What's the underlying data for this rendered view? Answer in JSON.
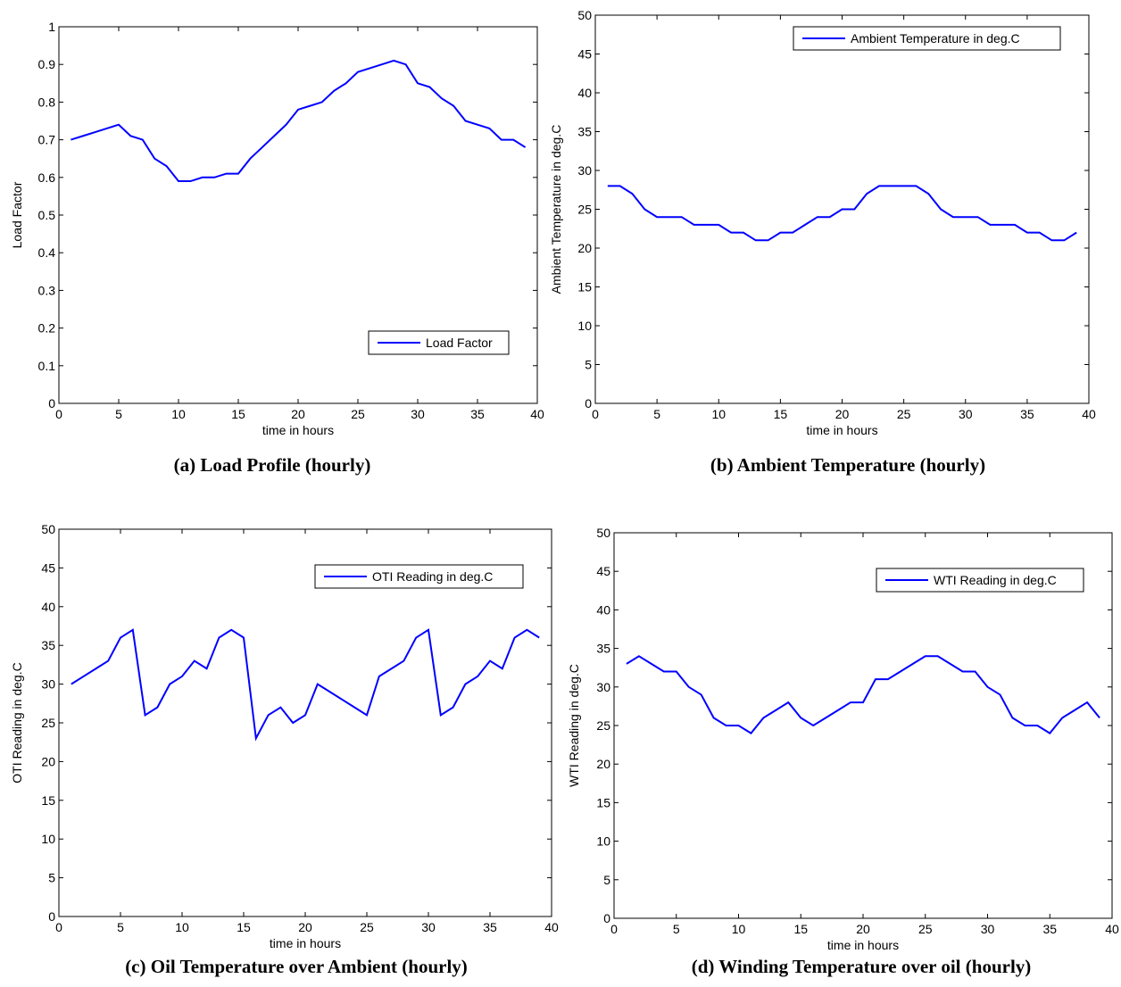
{
  "chart_data": [
    {
      "type": "line",
      "title": "(a) Load Profile (hourly)",
      "xlabel": "time in hours",
      "ylabel": "Load Factor",
      "x": [
        1,
        2,
        3,
        4,
        5,
        6,
        7,
        8,
        9,
        10,
        11,
        12,
        13,
        14,
        15,
        16,
        17,
        18,
        19,
        20,
        21,
        22,
        23,
        24,
        25,
        26,
        27,
        28,
        29,
        30,
        31,
        32,
        33,
        34,
        35,
        36,
        37,
        38,
        39
      ],
      "series": [
        {
          "name": "Load Factor",
          "color": "#0000ff",
          "values": [
            0.7,
            0.71,
            0.72,
            0.73,
            0.74,
            0.71,
            0.7,
            0.65,
            0.63,
            0.59,
            0.59,
            0.6,
            0.6,
            0.61,
            0.61,
            0.65,
            0.68,
            0.71,
            0.74,
            0.78,
            0.79,
            0.8,
            0.83,
            0.85,
            0.88,
            0.89,
            0.9,
            0.91,
            0.9,
            0.85,
            0.84,
            0.81,
            0.79,
            0.75,
            0.74,
            0.73,
            0.7,
            0.7,
            0.68
          ]
        }
      ],
      "xlim": [
        0,
        40
      ],
      "xticks": [
        0,
        5,
        10,
        15,
        20,
        25,
        30,
        35,
        40
      ],
      "ylim": [
        0,
        1
      ],
      "yticks": [
        0,
        0.1,
        0.2,
        0.3,
        0.4,
        0.5,
        0.6,
        0.7,
        0.8,
        0.9,
        1
      ],
      "legend": "lower right"
    },
    {
      "type": "line",
      "title": "(b) Ambient Temperature (hourly)",
      "xlabel": "time in hours",
      "ylabel": "Ambient Temperature in deg.C",
      "x": [
        1,
        2,
        3,
        4,
        5,
        6,
        7,
        8,
        9,
        10,
        11,
        12,
        13,
        14,
        15,
        16,
        17,
        18,
        19,
        20,
        21,
        22,
        23,
        24,
        25,
        26,
        27,
        28,
        29,
        30,
        31,
        32,
        33,
        34,
        35,
        36,
        37,
        38,
        39
      ],
      "series": [
        {
          "name": "Ambient Temperature in deg.C",
          "color": "#0000ff",
          "values": [
            28,
            28,
            27,
            25,
            24,
            24,
            24,
            23,
            23,
            23,
            22,
            22,
            21,
            21,
            22,
            22,
            23,
            24,
            24,
            25,
            25,
            27,
            28,
            28,
            28,
            28,
            27,
            25,
            24,
            24,
            24,
            23,
            23,
            23,
            22,
            22,
            21,
            21,
            22
          ]
        }
      ],
      "xlim": [
        0,
        40
      ],
      "xticks": [
        0,
        5,
        10,
        15,
        20,
        25,
        30,
        35,
        40
      ],
      "ylim": [
        0,
        50
      ],
      "yticks": [
        0,
        5,
        10,
        15,
        20,
        25,
        30,
        35,
        40,
        45,
        50
      ],
      "legend": "upper right"
    },
    {
      "type": "line",
      "title": "(c) Oil Temperature over Ambient (hourly)",
      "xlabel": "time in hours",
      "ylabel": "OTI Reading in deg.C",
      "x": [
        1,
        2,
        3,
        4,
        5,
        6,
        7,
        8,
        9,
        10,
        11,
        12,
        13,
        14,
        15,
        16,
        17,
        18,
        19,
        20,
        21,
        22,
        23,
        24,
        25,
        26,
        27,
        28,
        29,
        30,
        31,
        32,
        33,
        34,
        35,
        36,
        37,
        38,
        39
      ],
      "series": [
        {
          "name": "OTI Reading in deg.C",
          "color": "#0000ff",
          "values": [
            30,
            31,
            32,
            33,
            36,
            37,
            26,
            27,
            30,
            31,
            33,
            32,
            36,
            37,
            36,
            23,
            26,
            27,
            25,
            26,
            30,
            29,
            28,
            27,
            26,
            31,
            32,
            33,
            36,
            37,
            26,
            27,
            30,
            31,
            33,
            32,
            36,
            37,
            36
          ]
        }
      ],
      "xlim": [
        0,
        40
      ],
      "xticks": [
        0,
        5,
        10,
        15,
        20,
        25,
        30,
        35,
        40
      ],
      "ylim": [
        0,
        50
      ],
      "yticks": [
        0,
        5,
        10,
        15,
        20,
        25,
        30,
        35,
        40,
        45,
        50
      ],
      "legend": "upper right"
    },
    {
      "type": "line",
      "title": "(d) Winding Temperature over oil (hourly)",
      "xlabel": "time in hours",
      "ylabel": "WTI Reading in deg.C",
      "x": [
        1,
        2,
        3,
        4,
        5,
        6,
        7,
        8,
        9,
        10,
        11,
        12,
        13,
        14,
        15,
        16,
        17,
        18,
        19,
        20,
        21,
        22,
        23,
        24,
        25,
        26,
        27,
        28,
        29,
        30,
        31,
        32,
        33,
        34,
        35,
        36,
        37,
        38,
        39
      ],
      "series": [
        {
          "name": "WTI Reading in deg.C",
          "color": "#0000ff",
          "values": [
            33,
            34,
            33,
            32,
            32,
            30,
            29,
            26,
            25,
            25,
            24,
            26,
            27,
            28,
            26,
            25,
            26,
            27,
            28,
            28,
            31,
            31,
            32,
            33,
            34,
            34,
            33,
            32,
            32,
            30,
            29,
            26,
            25,
            25,
            24,
            26,
            27,
            28,
            26
          ]
        }
      ],
      "xlim": [
        0,
        40
      ],
      "xticks": [
        0,
        5,
        10,
        15,
        20,
        25,
        30,
        35,
        40
      ],
      "ylim": [
        0,
        50
      ],
      "yticks": [
        0,
        5,
        10,
        15,
        20,
        25,
        30,
        35,
        40,
        45,
        50
      ],
      "legend": "upper right"
    }
  ]
}
